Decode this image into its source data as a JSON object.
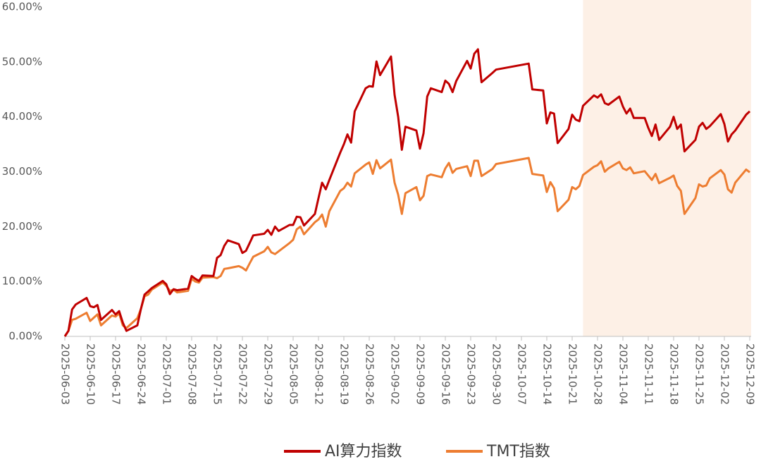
{
  "chart_data": {
    "type": "line",
    "x": [
      "2025-06-03",
      "2025-06-04",
      "2025-06-05",
      "2025-06-06",
      "2025-06-09",
      "2025-06-10",
      "2025-06-11",
      "2025-06-12",
      "2025-06-13",
      "2025-06-16",
      "2025-06-17",
      "2025-06-18",
      "2025-06-19",
      "2025-06-20",
      "2025-06-23",
      "2025-06-24",
      "2025-06-25",
      "2025-06-26",
      "2025-06-27",
      "2025-06-30",
      "2025-07-01",
      "2025-07-02",
      "2025-07-03",
      "2025-07-04",
      "2025-07-07",
      "2025-07-08",
      "2025-07-09",
      "2025-07-10",
      "2025-07-11",
      "2025-07-14",
      "2025-07-15",
      "2025-07-16",
      "2025-07-17",
      "2025-07-18",
      "2025-07-21",
      "2025-07-22",
      "2025-07-23",
      "2025-07-24",
      "2025-07-25",
      "2025-07-28",
      "2025-07-29",
      "2025-07-30",
      "2025-07-31",
      "2025-08-01",
      "2025-08-04",
      "2025-08-05",
      "2025-08-06",
      "2025-08-07",
      "2025-08-08",
      "2025-08-11",
      "2025-08-12",
      "2025-08-13",
      "2025-08-14",
      "2025-08-15",
      "2025-08-18",
      "2025-08-19",
      "2025-08-20",
      "2025-08-21",
      "2025-08-22",
      "2025-08-25",
      "2025-08-26",
      "2025-08-27",
      "2025-08-28",
      "2025-08-29",
      "2025-09-01",
      "2025-09-02",
      "2025-09-03",
      "2025-09-04",
      "2025-09-05",
      "2025-09-08",
      "2025-09-09",
      "2025-09-10",
      "2025-09-11",
      "2025-09-12",
      "2025-09-15",
      "2025-09-16",
      "2025-09-17",
      "2025-09-18",
      "2025-09-19",
      "2025-09-22",
      "2025-09-23",
      "2025-09-24",
      "2025-09-25",
      "2025-09-26",
      "2025-09-29",
      "2025-09-30",
      "2025-10-09",
      "2025-10-10",
      "2025-10-13",
      "2025-10-14",
      "2025-10-15",
      "2025-10-16",
      "2025-10-17",
      "2025-10-20",
      "2025-10-21",
      "2025-10-22",
      "2025-10-23",
      "2025-10-24",
      "2025-10-27",
      "2025-10-28",
      "2025-10-29",
      "2025-10-30",
      "2025-10-31",
      "2025-11-03",
      "2025-11-04",
      "2025-11-05",
      "2025-11-06",
      "2025-11-07",
      "2025-11-10",
      "2025-11-11",
      "2025-11-12",
      "2025-11-13",
      "2025-11-14",
      "2025-11-17",
      "2025-11-18",
      "2025-11-19",
      "2025-11-20",
      "2025-11-21",
      "2025-11-24",
      "2025-11-25",
      "2025-11-26",
      "2025-11-27",
      "2025-11-28",
      "2025-12-01",
      "2025-12-02",
      "2025-12-03",
      "2025-12-04",
      "2025-12-05",
      "2025-12-08",
      "2025-12-09"
    ],
    "series": [
      {
        "name": "AI算力指数",
        "color": "#c00000",
        "values": [
          0,
          1.0,
          4.9,
          5.8,
          7.0,
          5.5,
          5.3,
          5.7,
          3.0,
          4.8,
          4.0,
          4.6,
          2.5,
          1.0,
          2.0,
          5.0,
          7.6,
          8.2,
          8.8,
          10.1,
          9.5,
          7.7,
          8.6,
          8.4,
          8.7,
          11.0,
          10.5,
          10.1,
          11.1,
          11.0,
          14.3,
          14.8,
          16.5,
          17.5,
          16.8,
          15.2,
          15.6,
          17.0,
          18.4,
          18.7,
          19.4,
          18.5,
          20.0,
          19.2,
          20.3,
          20.3,
          21.8,
          21.7,
          20.2,
          22.3,
          25.2,
          28.0,
          26.8,
          28.5,
          33.5,
          35.0,
          36.8,
          35.3,
          41.0,
          45.2,
          45.6,
          45.5,
          50.1,
          47.6,
          51.0,
          44.0,
          40.0,
          34.0,
          38.2,
          37.5,
          34.2,
          37.0,
          43.7,
          45.2,
          44.5,
          46.6,
          46.0,
          44.5,
          46.5,
          50.2,
          48.8,
          51.5,
          52.3,
          46.3,
          48.0,
          48.6,
          49.7,
          45.0,
          44.8,
          38.8,
          40.8,
          40.6,
          35.2,
          37.8,
          40.4,
          39.5,
          39.2,
          42.0,
          43.9,
          43.5,
          44.1,
          42.5,
          42.2,
          43.7,
          41.9,
          40.6,
          41.5,
          39.8,
          39.8,
          38.0,
          36.5,
          38.6,
          35.8,
          38.2,
          40.0,
          37.8,
          38.6,
          33.7,
          35.8,
          38.2,
          38.9,
          37.8,
          38.3,
          40.5,
          38.7,
          35.5,
          36.8,
          37.5,
          40.4,
          41.0
        ]
      },
      {
        "name": "TMT指数",
        "color": "#ed7d31",
        "values": [
          0,
          1.0,
          3.0,
          3.2,
          4.3,
          2.8,
          3.4,
          4.0,
          2.0,
          3.8,
          3.6,
          4.2,
          2.0,
          1.5,
          3.3,
          5.0,
          7.3,
          7.6,
          8.5,
          9.8,
          9.2,
          8.3,
          8.5,
          8.0,
          8.3,
          10.5,
          10.0,
          9.8,
          10.7,
          10.8,
          10.6,
          11.0,
          12.3,
          12.4,
          12.8,
          12.5,
          12.0,
          13.3,
          14.5,
          15.5,
          16.3,
          15.3,
          15.0,
          15.5,
          17.0,
          17.6,
          19.5,
          20.0,
          18.6,
          20.8,
          21.3,
          22.2,
          20.0,
          22.8,
          26.5,
          27.0,
          28.0,
          27.3,
          29.7,
          31.3,
          31.7,
          29.6,
          32.1,
          30.6,
          32.2,
          28.0,
          25.8,
          22.3,
          26.1,
          27.2,
          24.8,
          25.6,
          29.2,
          29.5,
          29.0,
          30.6,
          31.6,
          29.8,
          30.5,
          31.0,
          29.2,
          32.0,
          32.0,
          29.2,
          30.5,
          31.4,
          32.5,
          29.6,
          29.3,
          26.3,
          28.1,
          27.0,
          22.8,
          24.9,
          27.2,
          26.8,
          27.4,
          29.4,
          30.9,
          31.2,
          31.9,
          30.0,
          30.6,
          31.8,
          30.6,
          30.3,
          30.8,
          29.7,
          30.1,
          29.3,
          28.5,
          29.6,
          27.9,
          28.9,
          29.3,
          27.4,
          26.5,
          22.3,
          25.2,
          27.7,
          27.3,
          27.5,
          28.8,
          30.3,
          29.5,
          26.8,
          26.2,
          28.0,
          30.4,
          29.9
        ]
      }
    ],
    "xlim": [
      "2025-06-03",
      "2025-12-09"
    ],
    "xticks": [
      "2025-06-03",
      "2025-06-10",
      "2025-06-17",
      "2025-06-24",
      "2025-07-01",
      "2025-07-08",
      "2025-07-15",
      "2025-07-22",
      "2025-07-29",
      "2025-08-05",
      "2025-08-12",
      "2025-08-19",
      "2025-08-26",
      "2025-09-02",
      "2025-09-09",
      "2025-09-16",
      "2025-09-23",
      "2025-09-30",
      "2025-10-07",
      "2025-10-14",
      "2025-10-21",
      "2025-10-28",
      "2025-11-04",
      "2025-11-11",
      "2025-11-18",
      "2025-11-25",
      "2025-12-02",
      "2025-12-09"
    ],
    "ylim": [
      0,
      60
    ],
    "yticks": [
      {
        "value": 0,
        "label": "0.00%"
      },
      {
        "value": 10,
        "label": "10.00%"
      },
      {
        "value": 20,
        "label": "20.00%"
      },
      {
        "value": 30,
        "label": "30.00%"
      },
      {
        "value": 40,
        "label": "40.00%"
      },
      {
        "value": 50,
        "label": "50.00%"
      },
      {
        "value": 60,
        "label": "60.00%"
      }
    ],
    "highlight": {
      "range": [
        "2025-10-24",
        "2025-12-09"
      ],
      "color": "#fdf0e6"
    },
    "legend": "bottom"
  }
}
